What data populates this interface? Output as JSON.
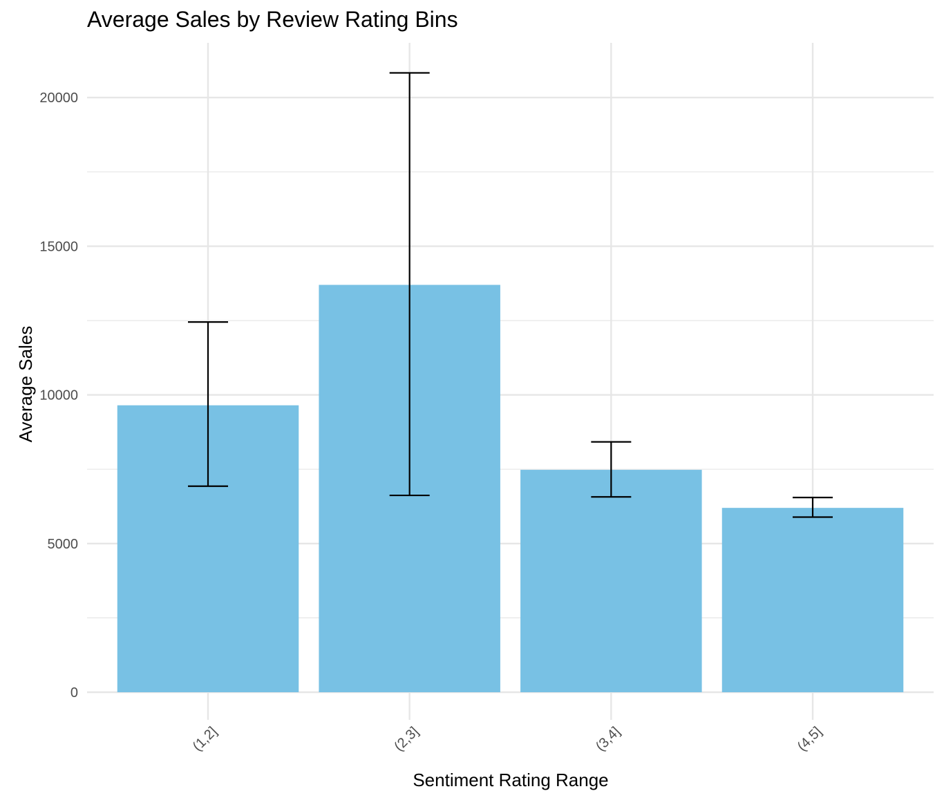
{
  "chart_data": {
    "type": "bar",
    "title": "Average Sales by Review Rating Bins",
    "xlabel": "Sentiment Rating Range",
    "ylabel": "Average Sales",
    "categories": [
      "(1,2]",
      "(2,3]",
      "(3,4]",
      "(4,5]"
    ],
    "values": [
      9650,
      13700,
      7480,
      6200
    ],
    "error_low": [
      6930,
      6620,
      6570,
      5890
    ],
    "error_high": [
      12450,
      20830,
      8420,
      6550
    ],
    "ylim": [
      0,
      21800
    ],
    "yticks": [
      0,
      5000,
      10000,
      15000,
      20000
    ],
    "ytick_labels": [
      "0",
      "5000",
      "10000",
      "15000",
      "20000"
    ],
    "grid": true,
    "legend": "none",
    "colors": {
      "bar": "#78c1e4",
      "error_bar": "#000000",
      "grid": "#e6e6e6"
    }
  }
}
